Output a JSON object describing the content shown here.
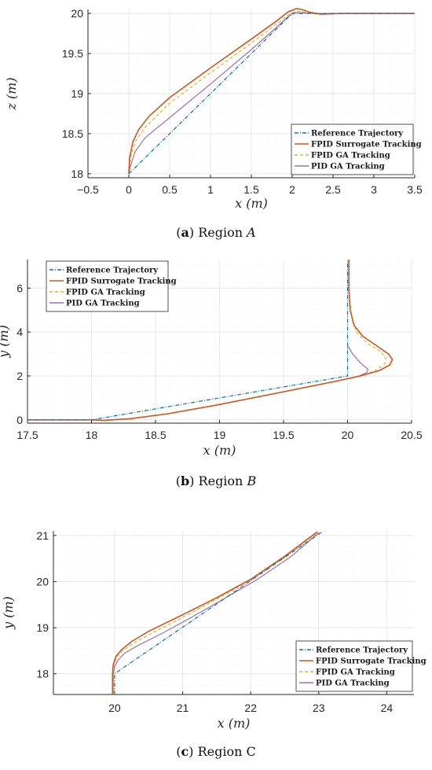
{
  "figures": [
    {
      "caption": {
        "label": "a",
        "text": "Region",
        "region": "A"
      },
      "chart_data": {
        "type": "line",
        "xlabel": "x (m)",
        "ylabel": "z (m)",
        "xlim": [
          -0.5,
          3.5
        ],
        "ylim": [
          17.95,
          20.05
        ],
        "xticks": [
          "−0.5",
          "0",
          "0.5",
          "1",
          "1.5",
          "2",
          "2.5",
          "3",
          "3.5"
        ],
        "xtick_values": [
          -0.5,
          0,
          0.5,
          1,
          1.5,
          2,
          2.5,
          3,
          3.5
        ],
        "yticks": [
          "18",
          "18.5",
          "19",
          "19.5",
          "20"
        ],
        "ytick_values": [
          18,
          18.5,
          19,
          19.5,
          20
        ],
        "grid": true,
        "legend": "bottom-right",
        "series": [
          {
            "name": "Reference Trajectory",
            "color": "#0072BD",
            "dash": "5,2,1,2",
            "x": [
              0,
              2.0,
              3.5
            ],
            "y": [
              18,
              20,
              20
            ]
          },
          {
            "name": "FPID Surrogate Tracking",
            "color": "#D95319",
            "dash": "",
            "x": [
              0,
              0.01,
              0.05,
              0.12,
              0.25,
              0.5,
              1.0,
              1.5,
              1.8,
              1.95,
              2.05,
              2.12,
              2.2,
              2.35,
              2.6,
              3.0,
              3.5
            ],
            "y": [
              18.0,
              18.2,
              18.4,
              18.55,
              18.72,
              18.95,
              19.32,
              19.68,
              19.9,
              20.02,
              20.06,
              20.05,
              20.02,
              19.99,
              20.0,
              20.0,
              20.0
            ]
          },
          {
            "name": "FPID GA Tracking",
            "color": "#EDB120",
            "dash": "4,3",
            "x": [
              0,
              0.02,
              0.08,
              0.2,
              0.5,
              1.0,
              1.5,
              1.8,
              1.95,
              2.05,
              2.15,
              2.3,
              2.6,
              3.0,
              3.5
            ],
            "y": [
              18.0,
              18.2,
              18.4,
              18.58,
              18.88,
              19.26,
              19.63,
              19.86,
              19.98,
              20.03,
              20.02,
              19.99,
              20.0,
              20.0,
              20.0
            ]
          },
          {
            "name": "PID GA Tracking",
            "color": "#9B6DC6",
            "dash": "",
            "x": [
              0,
              0.02,
              0.08,
              0.2,
              0.5,
              1.0,
              1.5,
              1.8,
              1.95,
              2.02,
              2.1,
              2.3,
              3.0,
              3.5
            ],
            "y": [
              18.0,
              18.1,
              18.28,
              18.45,
              18.7,
              19.12,
              19.55,
              19.82,
              19.96,
              20.01,
              20.01,
              20.0,
              20.0,
              20.0
            ]
          }
        ]
      }
    },
    {
      "caption": {
        "label": "b",
        "text": "Region",
        "region": "B"
      },
      "chart_data": {
        "type": "line",
        "xlabel": "x (m)",
        "ylabel": "y (m)",
        "xlim": [
          17.5,
          20.5
        ],
        "ylim": [
          -0.15,
          7.3
        ],
        "xticks": [
          "17.5",
          "18",
          "18.5",
          "19",
          "19.5",
          "20",
          "20.5"
        ],
        "xtick_values": [
          17.5,
          18,
          18.5,
          19,
          19.5,
          20,
          20.5
        ],
        "yticks": [
          "0",
          "2",
          "4",
          "6"
        ],
        "ytick_values": [
          0,
          2,
          4,
          6
        ],
        "grid": true,
        "legend": "top-left",
        "series": [
          {
            "name": "Reference Trajectory",
            "color": "#0072BD",
            "dash": "5,2,1,2",
            "x": [
              17.5,
              18.0,
              20.0,
              20.0
            ],
            "y": [
              0,
              0,
              2.0,
              7.3
            ]
          },
          {
            "name": "FPID Surrogate Tracking",
            "color": "#D95319",
            "dash": "",
            "x": [
              17.5,
              18.0,
              18.1,
              18.3,
              18.6,
              19.0,
              19.5,
              19.9,
              20.1,
              20.25,
              20.33,
              20.35,
              20.32,
              20.22,
              20.12,
              20.05,
              20.02,
              20.01,
              20.01
            ],
            "y": [
              0,
              0,
              -0.02,
              0.05,
              0.28,
              0.7,
              1.28,
              1.75,
              2.0,
              2.25,
              2.5,
              2.75,
              3.0,
              3.4,
              3.8,
              4.3,
              5.0,
              6.0,
              7.3
            ]
          },
          {
            "name": "FPID GA Tracking",
            "color": "#EDB120",
            "dash": "4,3",
            "x": [
              17.5,
              18.0,
              18.1,
              18.3,
              18.6,
              19.0,
              19.5,
              19.9,
              20.1,
              20.22,
              20.29,
              20.3,
              20.26,
              20.15,
              20.07,
              20.03,
              20.01,
              20.01
            ],
            "y": [
              0,
              0,
              -0.02,
              0.05,
              0.28,
              0.7,
              1.28,
              1.75,
              2.0,
              2.25,
              2.55,
              2.8,
              3.1,
              3.5,
              4.0,
              4.8,
              6.0,
              7.3
            ]
          },
          {
            "name": "PID GA Tracking",
            "color": "#9B6DC6",
            "dash": "",
            "x": [
              17.5,
              18.0,
              18.1,
              18.3,
              18.6,
              19.0,
              19.5,
              19.9,
              20.08,
              20.15,
              20.16,
              20.1,
              20.04,
              20.01,
              20.0
            ],
            "y": [
              0,
              0,
              -0.02,
              0.05,
              0.28,
              0.7,
              1.28,
              1.75,
              1.98,
              2.15,
              2.3,
              2.6,
              3.0,
              3.3,
              3.4
            ]
          }
        ]
      }
    },
    {
      "caption": {
        "label": "c",
        "text": "Region C",
        "region": ""
      },
      "chart_data": {
        "type": "line",
        "xlabel": "x (m)",
        "ylabel": "y (m)",
        "xlim": [
          19.1,
          24.4
        ],
        "ylim": [
          17.55,
          21.1
        ],
        "xticks": [
          "20",
          "21",
          "22",
          "23",
          "24"
        ],
        "xtick_values": [
          20,
          21,
          22,
          23,
          24
        ],
        "yticks": [
          "18",
          "19",
          "20",
          "21"
        ],
        "ytick_values": [
          18,
          19,
          20,
          21
        ],
        "grid": true,
        "legend": "bottom-right",
        "series": [
          {
            "name": "Reference Trajectory",
            "color": "#0072BD",
            "dash": "5,2,1,2",
            "x": [
              20.0,
              20.0,
              23.05
            ],
            "y": [
              17.55,
              18.0,
              21.08
            ]
          },
          {
            "name": "FPID Surrogate Tracking",
            "color": "#D95319",
            "dash": "",
            "x": [
              19.97,
              19.97,
              19.98,
              20.02,
              20.1,
              20.25,
              20.5,
              21.0,
              21.5,
              22.0,
              22.5,
              22.98
            ],
            "y": [
              17.55,
              18.0,
              18.2,
              18.38,
              18.52,
              18.7,
              18.92,
              19.28,
              19.65,
              20.05,
              20.55,
              21.08
            ]
          },
          {
            "name": "FPID GA Tracking",
            "color": "#EDB120",
            "dash": "4,3",
            "x": [
              19.98,
              19.98,
              19.99,
              20.03,
              20.12,
              20.3,
              20.6,
              21.0,
              21.5,
              22.0,
              22.5,
              22.99
            ],
            "y": [
              17.55,
              18.0,
              18.2,
              18.36,
              18.5,
              18.68,
              18.92,
              19.22,
              19.62,
              20.03,
              20.53,
              21.07
            ]
          },
          {
            "name": "PID GA Tracking",
            "color": "#9B6DC6",
            "dash": "",
            "x": [
              19.98,
              19.98,
              20.0,
              20.05,
              20.15,
              20.35,
              20.7,
              21.1,
              21.6,
              22.1,
              22.6,
              23.0
            ],
            "y": [
              17.55,
              18.0,
              18.15,
              18.3,
              18.45,
              18.62,
              18.88,
              19.2,
              19.62,
              20.05,
              20.55,
              21.06
            ]
          }
        ]
      }
    }
  ]
}
